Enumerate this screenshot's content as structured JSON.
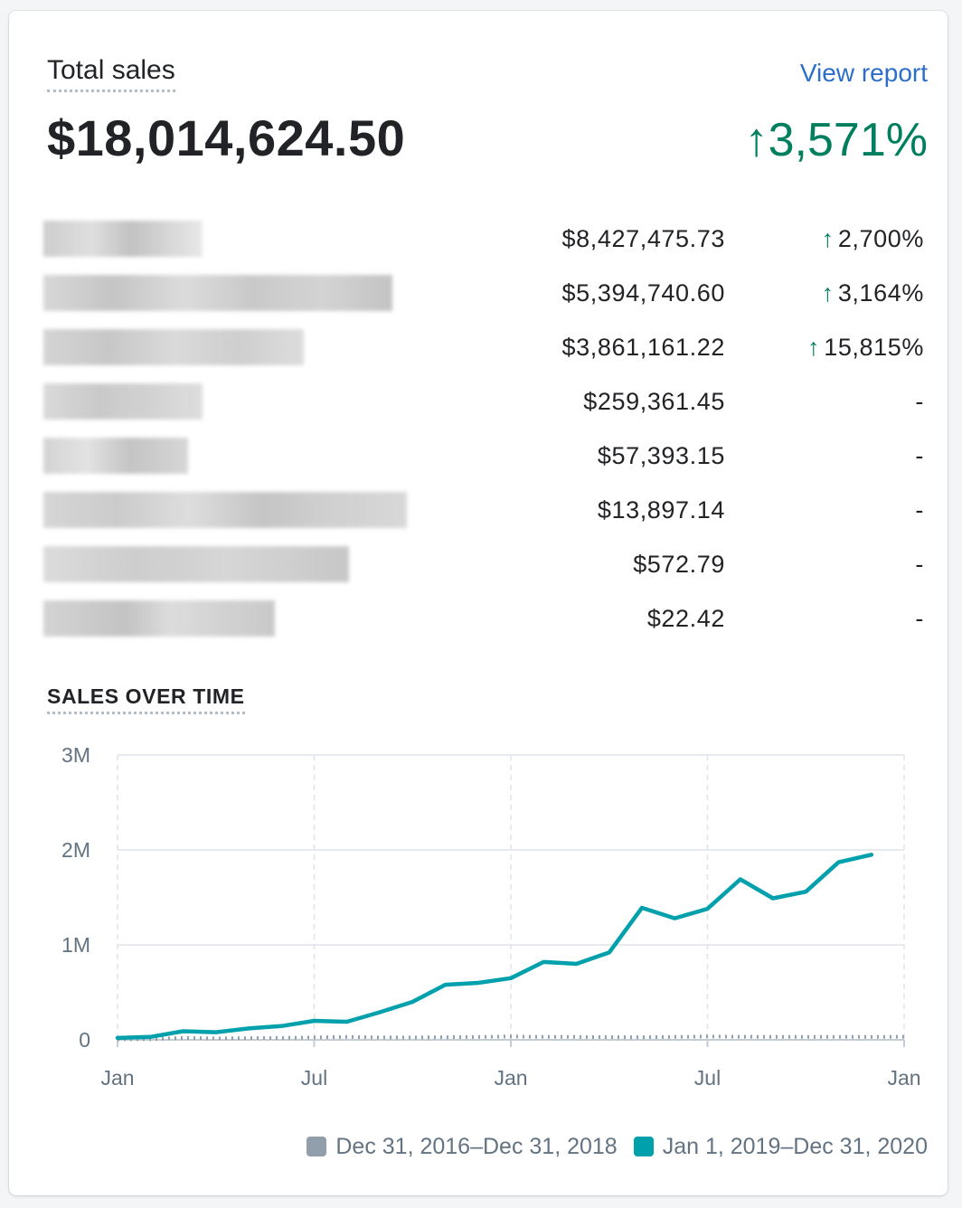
{
  "header": {
    "title": "Total sales",
    "view_report": "View report",
    "total_value": "$18,014,624.50",
    "total_change": "3,571%"
  },
  "breakdown": [
    {
      "value": "$8,427,475.73",
      "change": "2,700%",
      "up": true
    },
    {
      "value": "$5,394,740.60",
      "change": "3,164%",
      "up": true
    },
    {
      "value": "$3,861,161.22",
      "change": "15,815%",
      "up": true
    },
    {
      "value": "$259,361.45",
      "change": "-",
      "up": false
    },
    {
      "value": "$57,393.15",
      "change": "-",
      "up": false
    },
    {
      "value": "$13,897.14",
      "change": "-",
      "up": false
    },
    {
      "value": "$572.79",
      "change": "-",
      "up": false
    },
    {
      "value": "$22.42",
      "change": "-",
      "up": false
    }
  ],
  "chart_data": {
    "type": "line",
    "title": "SALES OVER TIME",
    "x_tick_labels": [
      "Jan",
      "Jul",
      "Jan",
      "Jul",
      "Jan"
    ],
    "y_tick_labels": [
      "3M",
      "2M",
      "1M",
      "0"
    ],
    "ylim": [
      0,
      3000000
    ],
    "grid": true,
    "legend_position": "bottom-right",
    "series": [
      {
        "name": "Dec 31, 2016–Dec 31, 2018",
        "color": "#919eab",
        "style": "dotted",
        "values": [
          5000,
          8000,
          20000,
          15000,
          18000,
          20000,
          25000,
          30000,
          25000,
          25000,
          28000,
          30000,
          35000,
          30000,
          30000,
          28000,
          28000,
          30000,
          35000,
          32000,
          30000,
          30000,
          30000,
          30000,
          32000
        ]
      },
      {
        "name": "Jan 1, 2019–Dec 31, 2020",
        "color": "#00a0ac",
        "style": "solid",
        "values": [
          20000,
          30000,
          90000,
          80000,
          120000,
          145000,
          200000,
          190000,
          290000,
          400000,
          580000,
          600000,
          650000,
          820000,
          800000,
          920000,
          1390000,
          1280000,
          1380000,
          1690000,
          1490000,
          1560000,
          1870000,
          1950000
        ]
      }
    ]
  },
  "legend": {
    "previous": "Dec 31, 2016–Dec 31, 2018",
    "current": "Jan 1, 2019–Dec 31, 2020",
    "previous_color": "#919eab",
    "current_color": "#00a0ac"
  }
}
